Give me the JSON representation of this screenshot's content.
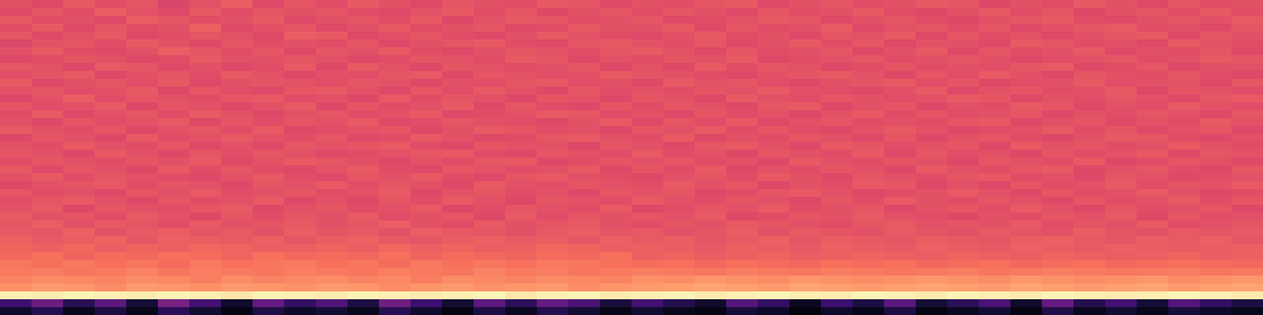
{
  "chart_data": {
    "type": "heatmap",
    "color": "magma",
    "tick_labels": false,
    "zlim": [
      0,
      100
    ],
    "values": [
      [
        62,
        60,
        64,
        61,
        63,
        59,
        62,
        65,
        60,
        63,
        61,
        64,
        62,
        60,
        63,
        62,
        61,
        64,
        63,
        60,
        62,
        61,
        63,
        64,
        60,
        62,
        63,
        61,
        62,
        64,
        63,
        60,
        62,
        61,
        64,
        62,
        60,
        63,
        61,
        62
      ],
      [
        60,
        63,
        61,
        65,
        62,
        60,
        64,
        61,
        63,
        62,
        63,
        61,
        60,
        62,
        64,
        61,
        63,
        60,
        62,
        63,
        61,
        63,
        62,
        60,
        63,
        61,
        62,
        64,
        61,
        60,
        62,
        64,
        61,
        63,
        60,
        62,
        63,
        61,
        64,
        61
      ],
      [
        64,
        61,
        62,
        60,
        65,
        63,
        61,
        62,
        64,
        60,
        62,
        63,
        61,
        64,
        60,
        62,
        64,
        63,
        61,
        62,
        63,
        60,
        61,
        62,
        64,
        63,
        60,
        62,
        63,
        61,
        60,
        62,
        63,
        64,
        61,
        60,
        62,
        63,
        62,
        64
      ],
      [
        61,
        64,
        60,
        63,
        61,
        62,
        66,
        60,
        62,
        63,
        60,
        62,
        64,
        61,
        62,
        63,
        60,
        61,
        64,
        62,
        62,
        64,
        60,
        63,
        61,
        62,
        64,
        60,
        62,
        63,
        61,
        63,
        60,
        62,
        63,
        64,
        61,
        62,
        60,
        63
      ],
      [
        63,
        60,
        62,
        64,
        60,
        61,
        63,
        62,
        60,
        65,
        64,
        60,
        62,
        63,
        61,
        60,
        62,
        64,
        62,
        61,
        60,
        62,
        64,
        61,
        62,
        60,
        63,
        62,
        64,
        60,
        63,
        61,
        62,
        60,
        62,
        63,
        64,
        60,
        63,
        62
      ],
      [
        59,
        62,
        63,
        61,
        64,
        62,
        60,
        63,
        61,
        62,
        61,
        63,
        60,
        62,
        63,
        64,
        61,
        60,
        63,
        64,
        62,
        61,
        63,
        60,
        62,
        64,
        61,
        63,
        60,
        62,
        62,
        60,
        64,
        63,
        61,
        62,
        60,
        64,
        62,
        61
      ],
      [
        62,
        64,
        61,
        60,
        62,
        65,
        63,
        61,
        63,
        60,
        63,
        62,
        64,
        61,
        60,
        62,
        63,
        62,
        61,
        63,
        64,
        62,
        60,
        63,
        61,
        62,
        63,
        60,
        62,
        64,
        60,
        63,
        61,
        62,
        64,
        60,
        62,
        61,
        63,
        60
      ],
      [
        60,
        61,
        63,
        62,
        60,
        61,
        64,
        62,
        62,
        63,
        62,
        60,
        61,
        63,
        62,
        61,
        64,
        63,
        60,
        62,
        61,
        63,
        62,
        64,
        60,
        61,
        62,
        63,
        61,
        62,
        63,
        62,
        60,
        61,
        62,
        63,
        61,
        62,
        64,
        63
      ],
      [
        63,
        62,
        60,
        64,
        63,
        60,
        62,
        60,
        61,
        64,
        60,
        64,
        62,
        60,
        63,
        62,
        61,
        62,
        63,
        60,
        62,
        60,
        64,
        61,
        63,
        62,
        60,
        61,
        63,
        61,
        62,
        61,
        63,
        64,
        60,
        61,
        63,
        60,
        62,
        62
      ],
      [
        61,
        63,
        64,
        60,
        62,
        63,
        61,
        64,
        62,
        60,
        62,
        61,
        63,
        64,
        60,
        63,
        62,
        61,
        62,
        64,
        63,
        62,
        61,
        60,
        62,
        63,
        64,
        62,
        60,
        63,
        61,
        64,
        62,
        60,
        63,
        62,
        61,
        63,
        61,
        60
      ],
      [
        64,
        60,
        62,
        63,
        61,
        64,
        60,
        62,
        63,
        62,
        61,
        63,
        62,
        60,
        62,
        61,
        63,
        64,
        61,
        62,
        60,
        64,
        62,
        63,
        61,
        60,
        62,
        63,
        64,
        61,
        63,
        60,
        61,
        62,
        64,
        61,
        62,
        62,
        60,
        63
      ],
      [
        62,
        63,
        61,
        62,
        64,
        60,
        63,
        61,
        60,
        63,
        64,
        62,
        60,
        63,
        61,
        64,
        62,
        60,
        63,
        61,
        62,
        61,
        63,
        62,
        64,
        62,
        61,
        60,
        62,
        64,
        60,
        62,
        63,
        61,
        62,
        64,
        60,
        63,
        62,
        61
      ],
      [
        60,
        62,
        65,
        61,
        63,
        62,
        61,
        63,
        64,
        61,
        62,
        60,
        64,
        61,
        63,
        62,
        60,
        63,
        62,
        60,
        63,
        62,
        60,
        64,
        62,
        61,
        63,
        62,
        61,
        62,
        64,
        63,
        60,
        62,
        61,
        63,
        62,
        60,
        63,
        64
      ],
      [
        63,
        61,
        62,
        64,
        60,
        63,
        62,
        60,
        62,
        64,
        60,
        63,
        61,
        62,
        64,
        60,
        63,
        61,
        60,
        63,
        61,
        63,
        62,
        60,
        63,
        64,
        60,
        62,
        63,
        60,
        62,
        61,
        64,
        63,
        60,
        62,
        61,
        64,
        62,
        61
      ],
      [
        61,
        64,
        60,
        62,
        63,
        61,
        64,
        62,
        60,
        62,
        63,
        61,
        62,
        64,
        60,
        61,
        62,
        64,
        63,
        61,
        62,
        60,
        63,
        61,
        62,
        60,
        62,
        64,
        61,
        63,
        61,
        62,
        63,
        60,
        62,
        61,
        63,
        62,
        60,
        63
      ],
      [
        62,
        60,
        63,
        61,
        62,
        64,
        60,
        63,
        61,
        63,
        62,
        64,
        60,
        61,
        63,
        62,
        61,
        60,
        62,
        64,
        60,
        63,
        61,
        64,
        60,
        62,
        63,
        61,
        62,
        61,
        63,
        64,
        60,
        62,
        63,
        60,
        62,
        61,
        64,
        62
      ],
      [
        64,
        62,
        61,
        63,
        60,
        62,
        63,
        61,
        64,
        60,
        61,
        62,
        63,
        60,
        62,
        64,
        63,
        61,
        62,
        60,
        63,
        62,
        64,
        61,
        63,
        61,
        60,
        62,
        64,
        62,
        60,
        61,
        62,
        64,
        61,
        63,
        60,
        62,
        63,
        60
      ],
      [
        60,
        63,
        62,
        60,
        64,
        61,
        62,
        64,
        62,
        61,
        63,
        60,
        61,
        64,
        62,
        60,
        61,
        63,
        64,
        62,
        61,
        64,
        60,
        62,
        61,
        63,
        62,
        60,
        63,
        60,
        62,
        63,
        61,
        60,
        62,
        64,
        63,
        61,
        60,
        62
      ],
      [
        62,
        61,
        64,
        62,
        61,
        63,
        60,
        62,
        60,
        63,
        62,
        63,
        64,
        61,
        60,
        63,
        62,
        62,
        60,
        63,
        62,
        60,
        63,
        64,
        62,
        60,
        64,
        63,
        61,
        62,
        63,
        60,
        64,
        62,
        63,
        61,
        62,
        64,
        62,
        61
      ],
      [
        63,
        62,
        60,
        64,
        62,
        60,
        63,
        61,
        63,
        62,
        60,
        61,
        62,
        63,
        64,
        61,
        60,
        63,
        62,
        61,
        64,
        61,
        62,
        60,
        63,
        62,
        61,
        64,
        60,
        63,
        61,
        62,
        60,
        63,
        61,
        62,
        64,
        60,
        63,
        62
      ],
      [
        61,
        63,
        62,
        61,
        63,
        62,
        64,
        60,
        62,
        64,
        63,
        62,
        60,
        62,
        61,
        63,
        64,
        60,
        61,
        63,
        62,
        63,
        61,
        62,
        60,
        64,
        62,
        61,
        63,
        62,
        60,
        63,
        62,
        61,
        64,
        60,
        61,
        63,
        62,
        60
      ],
      [
        64,
        60,
        63,
        62,
        60,
        64,
        61,
        63,
        61,
        60,
        62,
        64,
        61,
        60,
        63,
        62,
        61,
        62,
        64,
        60,
        63,
        61,
        64,
        60,
        62,
        61,
        63,
        62,
        60,
        64,
        62,
        61,
        63,
        64,
        60,
        62,
        63,
        61,
        60,
        63
      ],
      [
        62,
        64,
        61,
        63,
        62,
        61,
        60,
        62,
        64,
        61,
        60,
        63,
        62,
        64,
        61,
        60,
        63,
        64,
        62,
        61,
        60,
        62,
        63,
        61,
        64,
        62,
        60,
        63,
        62,
        61,
        63,
        64,
        61,
        62,
        60,
        63,
        62,
        60,
        61,
        62
      ],
      [
        60,
        62,
        63,
        64,
        61,
        63,
        62,
        60,
        63,
        62,
        64,
        61,
        63,
        62,
        60,
        64,
        62,
        61,
        63,
        62,
        61,
        64,
        62,
        63,
        60,
        62,
        61,
        64,
        63,
        60,
        62,
        60,
        63,
        61,
        62,
        64,
        61,
        63,
        62,
        64
      ],
      [
        63,
        61,
        62,
        60,
        63,
        62,
        64,
        61,
        62,
        63,
        61,
        62,
        64,
        60,
        62,
        63,
        61,
        62,
        60,
        63,
        62,
        63,
        60,
        61,
        63,
        64,
        62,
        60,
        61,
        62,
        64,
        62,
        60,
        63,
        61,
        62,
        64,
        62,
        60,
        61
      ],
      [
        61,
        63,
        64,
        62,
        60,
        63,
        61,
        62,
        64,
        60,
        62,
        60,
        63,
        61,
        64,
        62,
        60,
        63,
        62,
        61,
        64,
        62,
        61,
        63,
        62,
        60,
        63,
        61,
        64,
        62,
        61,
        63,
        62,
        60,
        63,
        61,
        62,
        64,
        61,
        63
      ],
      [
        62,
        64,
        60,
        63,
        62,
        61,
        63,
        64,
        60,
        62,
        63,
        61,
        62,
        64,
        60,
        61,
        63,
        62,
        61,
        64,
        60,
        61,
        63,
        62,
        64,
        61,
        62,
        63,
        60,
        62,
        63,
        61,
        64,
        62,
        60,
        63,
        61,
        62,
        63,
        60
      ],
      [
        64,
        62,
        63,
        61,
        64,
        62,
        60,
        63,
        61,
        63,
        62,
        64,
        61,
        62,
        63,
        60,
        64,
        61,
        63,
        62,
        63,
        62,
        64,
        60,
        61,
        63,
        62,
        64,
        62,
        61,
        60,
        62,
        61,
        63,
        62,
        64,
        60,
        63,
        61,
        62
      ],
      [
        63,
        65,
        62,
        64,
        63,
        61,
        64,
        62,
        63,
        64,
        62,
        63,
        65,
        62,
        61,
        64,
        62,
        63,
        64,
        62,
        61,
        63,
        62,
        64,
        63,
        62,
        61,
        63,
        64,
        62,
        63,
        62,
        64,
        61,
        63,
        62,
        64,
        61,
        62,
        63
      ],
      [
        64,
        63,
        66,
        62,
        64,
        65,
        63,
        64,
        62,
        65,
        63,
        64,
        62,
        65,
        64,
        63,
        62,
        64,
        65,
        63,
        64,
        62,
        63,
        65,
        62,
        64,
        63,
        62,
        64,
        63,
        62,
        64,
        63,
        62,
        65,
        63,
        62,
        64,
        63,
        64
      ],
      [
        66,
        64,
        65,
        67,
        63,
        66,
        65,
        64,
        66,
        63,
        65,
        66,
        64,
        63,
        65,
        66,
        64,
        65,
        63,
        66,
        64,
        65,
        63,
        64,
        66,
        63,
        65,
        64,
        63,
        65,
        64,
        63,
        65,
        66,
        64,
        63,
        65,
        64,
        66,
        63
      ],
      [
        67,
        66,
        68,
        65,
        67,
        66,
        68,
        67,
        65,
        66,
        67,
        65,
        68,
        66,
        67,
        65,
        66,
        68,
        67,
        65,
        66,
        65,
        64,
        66,
        65,
        64,
        66,
        65,
        64,
        66,
        65,
        64,
        66,
        65,
        64,
        66,
        65,
        64,
        65,
        66
      ],
      [
        68,
        70,
        67,
        69,
        68,
        70,
        69,
        67,
        70,
        68,
        69,
        68,
        70,
        67,
        69,
        68,
        67,
        69,
        68,
        70,
        66,
        67,
        65,
        66,
        67,
        65,
        66,
        67,
        66,
        65,
        67,
        66,
        65,
        67,
        66,
        65,
        66,
        67,
        65,
        66
      ],
      [
        71,
        70,
        72,
        70,
        71,
        69,
        72,
        70,
        71,
        72,
        70,
        71,
        69,
        72,
        70,
        71,
        70,
        72,
        71,
        70,
        69,
        70,
        68,
        70,
        69,
        68,
        70,
        69,
        70,
        68,
        69,
        70,
        68,
        69,
        70,
        68,
        69,
        70,
        69,
        68
      ],
      [
        72,
        73,
        71,
        72,
        74,
        71,
        73,
        72,
        71,
        73,
        72,
        71,
        73,
        72,
        71,
        74,
        72,
        73,
        71,
        72,
        73,
        72,
        71,
        73,
        72,
        71,
        73,
        72,
        71,
        72,
        73,
        71,
        72,
        73,
        72,
        71,
        72,
        73,
        71,
        72
      ],
      [
        74,
        76,
        75,
        74,
        76,
        75,
        73,
        76,
        74,
        75,
        76,
        74,
        75,
        73,
        76,
        75,
        74,
        76,
        75,
        74,
        77,
        76,
        78,
        77,
        76,
        78,
        77,
        76,
        77,
        78,
        77,
        76,
        78,
        77,
        76,
        77,
        78,
        76,
        77,
        78
      ],
      [
        77,
        79,
        78,
        76,
        79,
        78,
        77,
        79,
        78,
        77,
        79,
        78,
        76,
        78,
        79,
        77,
        78,
        79,
        76,
        78,
        79,
        80,
        81,
        80,
        79,
        81,
        80,
        79,
        80,
        81,
        80,
        79,
        81,
        80,
        79,
        80,
        81,
        79,
        80,
        81
      ],
      [
        97,
        96,
        98,
        97,
        96,
        98,
        97,
        95,
        98,
        97,
        96,
        98,
        97,
        96,
        97,
        98,
        95,
        97,
        98,
        96,
        97,
        98,
        96,
        97,
        98,
        97,
        96,
        98,
        97,
        96,
        98,
        97,
        96,
        98,
        97,
        96,
        97,
        98,
        97,
        96
      ],
      [
        20,
        32,
        15,
        28,
        10,
        35,
        22,
        8,
        30,
        18,
        25,
        12,
        33,
        20,
        9,
        28,
        16,
        30,
        24,
        11,
        22,
        14,
        8,
        26,
        18,
        6,
        20,
        12,
        28,
        10,
        16,
        24,
        8,
        30,
        14,
        22,
        10,
        26,
        18,
        12
      ],
      [
        8,
        14,
        5,
        12,
        4,
        16,
        9,
        3,
        13,
        7,
        10,
        5,
        15,
        8,
        3,
        12,
        6,
        14,
        9,
        4,
        9,
        5,
        3,
        11,
        7,
        2,
        8,
        4,
        12,
        3,
        6,
        10,
        3,
        13,
        5,
        9,
        4,
        11,
        7,
        5
      ]
    ]
  }
}
